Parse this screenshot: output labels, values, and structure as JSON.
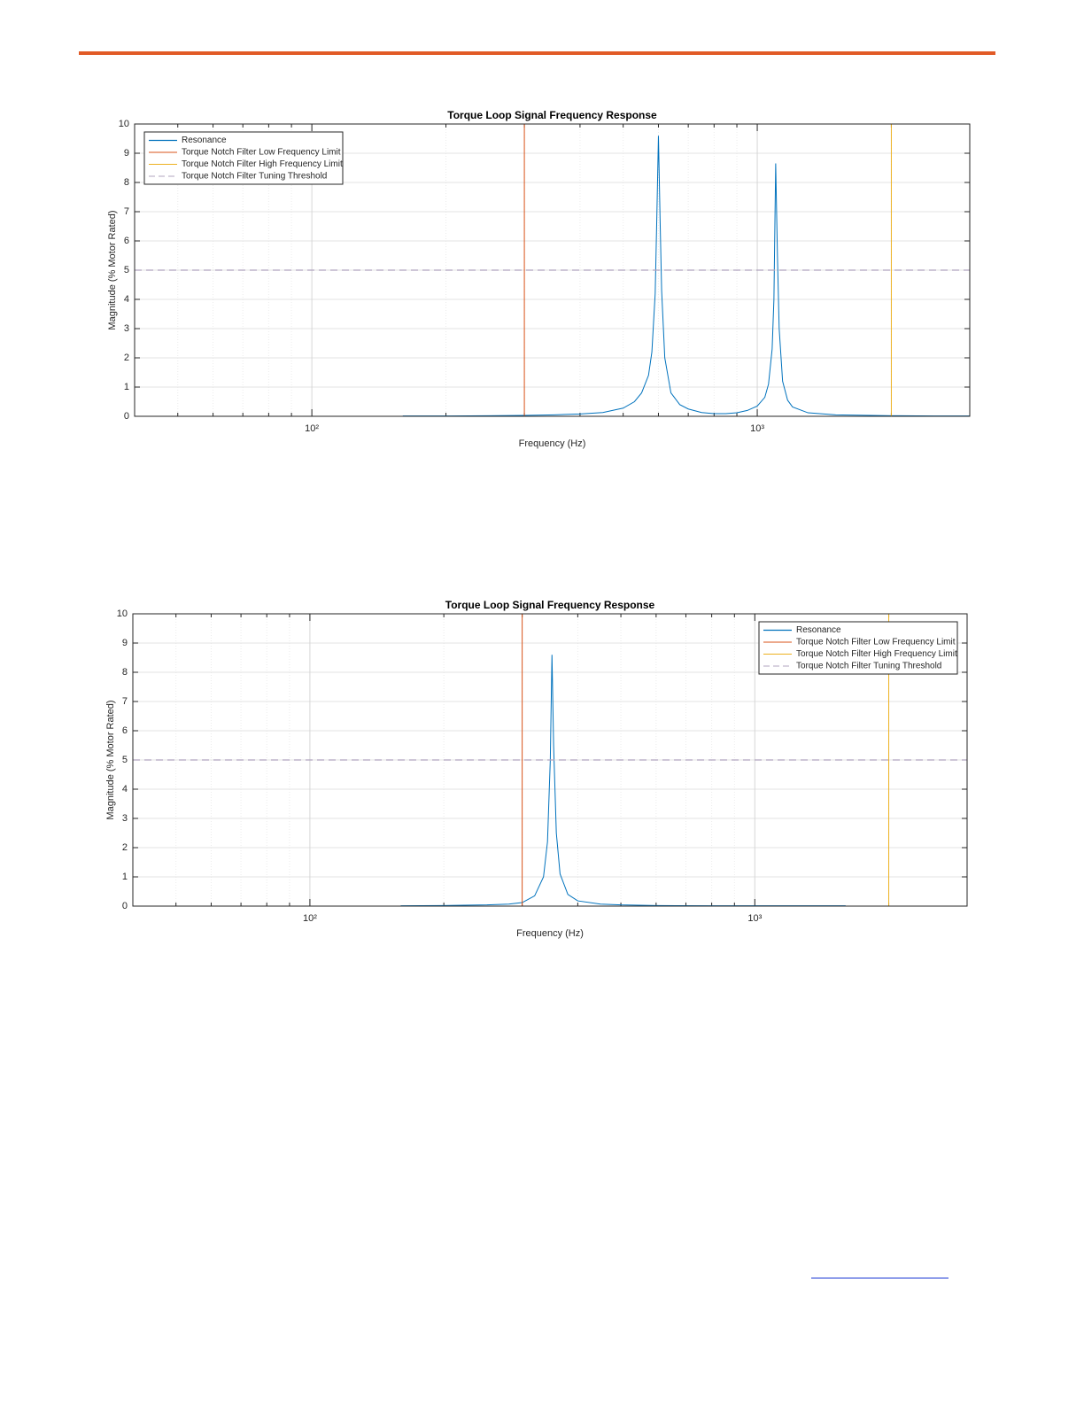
{
  "chart_data": [
    {
      "type": "line",
      "title": "Torque Loop Signal Frequency Response",
      "x_label": "Frequency (Hz)",
      "y_label": "Magnitude (% Motor Rated)",
      "xscale": "log",
      "xlim": [
        40,
        3000
      ],
      "ylim": [
        0,
        10
      ],
      "xticks": [
        {
          "value": 100,
          "label": "10²"
        },
        {
          "value": 1000,
          "label": "10³"
        }
      ],
      "x_minor_ticks": [
        40,
        50,
        60,
        70,
        80,
        90,
        200,
        300,
        400,
        500,
        600,
        700,
        800,
        900,
        2000,
        3000
      ],
      "yticks": [
        0,
        1,
        2,
        3,
        4,
        5,
        6,
        7,
        8,
        9,
        10
      ],
      "grid": true,
      "legend": "upper left",
      "series": [
        {
          "name": "Resonance",
          "color": "#0072bd",
          "x": [
            160,
            200,
            250,
            300,
            350,
            400,
            450,
            500,
            530,
            550,
            570,
            580,
            590,
            595,
            600,
            605,
            610,
            620,
            640,
            670,
            700,
            750,
            800,
            850,
            900,
            950,
            1000,
            1040,
            1060,
            1080,
            1090,
            1100,
            1110,
            1120,
            1140,
            1170,
            1200,
            1300,
            1500,
            2000,
            2500,
            3000
          ],
          "values": [
            0.01,
            0.01,
            0.02,
            0.03,
            0.05,
            0.08,
            0.13,
            0.28,
            0.5,
            0.8,
            1.4,
            2.2,
            4.2,
            6.8,
            9.6,
            6.8,
            4.3,
            2.0,
            0.8,
            0.4,
            0.25,
            0.13,
            0.09,
            0.09,
            0.12,
            0.2,
            0.35,
            0.65,
            1.1,
            2.3,
            4.0,
            8.65,
            5.5,
            3.0,
            1.2,
            0.55,
            0.32,
            0.12,
            0.05,
            0.02,
            0.01,
            0.01
          ]
        },
        {
          "name": "Torque Notch Filter Low Frequency Limit",
          "color": "#d95319",
          "x_line": 300
        },
        {
          "name": "Torque Notch Filter High Frequency Limit",
          "color": "#edb120",
          "x_line": 2000
        },
        {
          "name": "Torque Notch Filter Tuning Threshold",
          "color": "#b0a4bf",
          "y_line": 5,
          "line_style": "--"
        }
      ]
    },
    {
      "type": "line",
      "title": "Torque Loop Signal Frequency Response",
      "x_label": "Frequency (Hz)",
      "y_label": "Magnitude (% Motor Rated)",
      "xscale": "log",
      "xlim": [
        40,
        3000
      ],
      "ylim": [
        0,
        10
      ],
      "xticks": [
        {
          "value": 100,
          "label": "10²"
        },
        {
          "value": 1000,
          "label": "10³"
        }
      ],
      "x_minor_ticks": [
        40,
        50,
        60,
        70,
        80,
        90,
        200,
        300,
        400,
        500,
        600,
        700,
        800,
        900,
        2000,
        3000
      ],
      "yticks": [
        0,
        1,
        2,
        3,
        4,
        5,
        6,
        7,
        8,
        9,
        10
      ],
      "grid": true,
      "legend": "upper right",
      "series": [
        {
          "name": "Resonance",
          "color": "#0072bd",
          "x": [
            160,
            200,
            250,
            280,
            300,
            320,
            335,
            342,
            347,
            350,
            353,
            358,
            365,
            380,
            400,
            450,
            500,
            600,
            800,
            1000,
            1300,
            1600
          ],
          "values": [
            0.01,
            0.02,
            0.04,
            0.07,
            0.12,
            0.35,
            1.0,
            2.2,
            5.0,
            8.6,
            5.5,
            2.5,
            1.1,
            0.4,
            0.18,
            0.07,
            0.04,
            0.02,
            0.01,
            0.01,
            0.01,
            0.01
          ]
        },
        {
          "name": "Torque Notch Filter Low Frequency Limit",
          "color": "#d95319",
          "x_line": 300
        },
        {
          "name": "Torque Notch Filter High Frequency Limit",
          "color": "#edb120",
          "x_line": 2000
        },
        {
          "name": "Torque Notch Filter Tuning Threshold",
          "color": "#b0a4bf",
          "y_line": 5,
          "line_style": "--"
        }
      ]
    }
  ]
}
